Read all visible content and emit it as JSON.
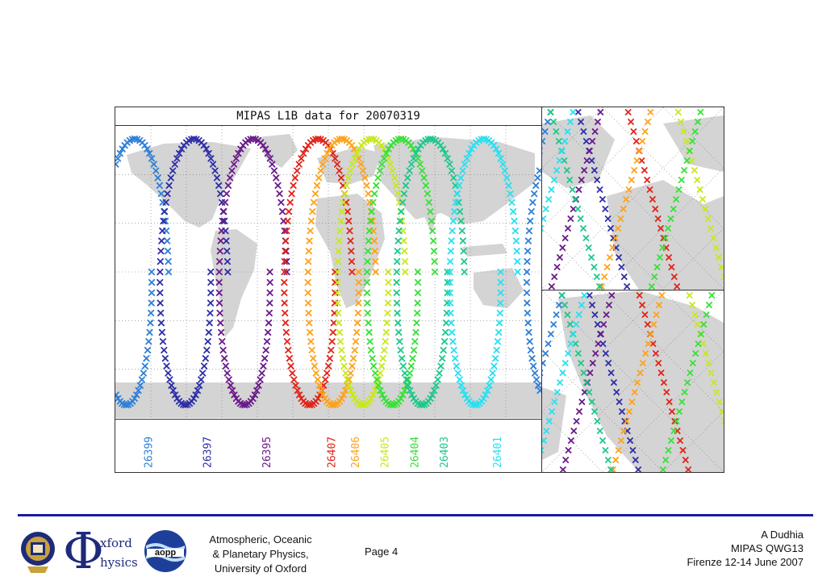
{
  "chart_data": {
    "type": "scatter",
    "title": "MIPAS L1B data for 20070319",
    "xlabel": "",
    "ylabel": "",
    "xlim": [
      -180,
      180
    ],
    "ylim": [
      -90,
      90
    ],
    "grid": true,
    "marker": "x",
    "legend_position": "bottom",
    "series": [
      {
        "name": "26399",
        "color": "#2f7fd6",
        "lon0": -160
      },
      {
        "name": "26397",
        "color": "#2e2ea8",
        "lon0": -110
      },
      {
        "name": "26395",
        "color": "#6a1a8a",
        "lon0": -60
      },
      {
        "name": "26407",
        "color": "#e0241a",
        "lon0": -5
      },
      {
        "name": "26406",
        "color": "#ffa21a",
        "lon0": 15
      },
      {
        "name": "26405",
        "color": "#c8e81e",
        "lon0": 40
      },
      {
        "name": "26404",
        "color": "#38e038",
        "lon0": 65
      },
      {
        "name": "26403",
        "color": "#1ec88a",
        "lon0": 90
      },
      {
        "name": "26401",
        "color": "#28e0f0",
        "lon0": 135
      }
    ]
  },
  "footer": {
    "affiliation": [
      "Atmospheric, Oceanic",
      "& Planetary Physics,",
      "University of Oxford"
    ],
    "page": "Page 4",
    "author": "A Dudhia",
    "meeting": "MIPAS QWG13",
    "venue": "Firenze 12-14 June 2007",
    "physics_logo": {
      "phi": "Φ",
      "line1": "xford",
      "line2": "hysics"
    },
    "aopp_logo": "aopp"
  },
  "colors": {
    "rule": "#1a1aa0",
    "land": "#d4d4d4"
  }
}
